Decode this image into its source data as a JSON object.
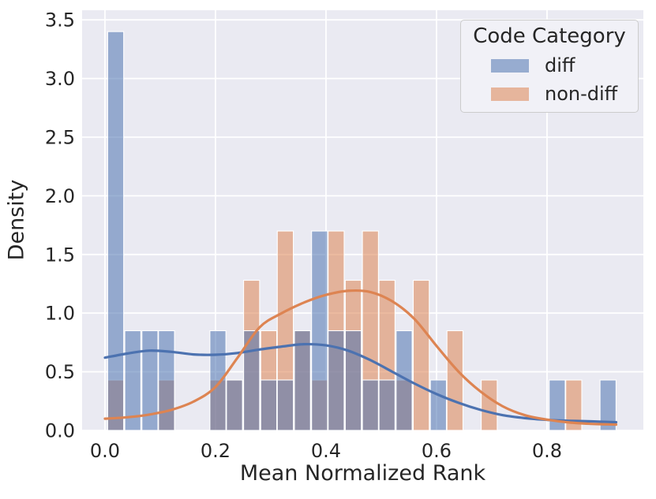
{
  "axes": {
    "xlabel": "Mean Normalized Rank",
    "ylabel": "Density",
    "background": "#eaeaf2",
    "grid_color": "#ffffff",
    "text_color": "#262626",
    "x_ticks": [
      {
        "value": 0.0,
        "label": "0.0"
      },
      {
        "value": 0.2,
        "label": "0.2"
      },
      {
        "value": 0.4,
        "label": "0.4"
      },
      {
        "value": 0.6,
        "label": "0.6"
      },
      {
        "value": 0.8,
        "label": "0.8"
      }
    ],
    "y_ticks": [
      {
        "value": 0.0,
        "label": "0.0"
      },
      {
        "value": 0.5,
        "label": "0.5"
      },
      {
        "value": 1.0,
        "label": "1.0"
      },
      {
        "value": 1.5,
        "label": "1.5"
      },
      {
        "value": 2.0,
        "label": "2.0"
      },
      {
        "value": 2.5,
        "label": "2.5"
      },
      {
        "value": 3.0,
        "label": "3.0"
      },
      {
        "value": 3.5,
        "label": "3.5"
      }
    ]
  },
  "legend": {
    "title": "Code Category",
    "items": [
      {
        "label": "diff",
        "color": "#4c72b0"
      },
      {
        "label": "non-diff",
        "color": "#dd8452"
      }
    ]
  },
  "chart_data": {
    "type": "bar",
    "subtype": "overlaid histogram (density) with KDE line overlay",
    "title": "",
    "xlabel": "Mean Normalized Rank",
    "ylabel": "Density",
    "xlim": [
      -0.0414,
      0.9743
    ],
    "ylim": [
      0,
      3.582
    ],
    "grid": "on",
    "legend_position": "upper right",
    "bar_alpha": 0.55,
    "bin_width": 0.0307,
    "series": [
      {
        "name": "diff",
        "color": "#4c72b0",
        "bars": [
          [
            0.004,
            3.4
          ],
          [
            0.035,
            0.85
          ],
          [
            0.066,
            0.85
          ],
          [
            0.096,
            0.85
          ],
          [
            0.189,
            0.85
          ],
          [
            0.219,
            0.43
          ],
          [
            0.25,
            0.85
          ],
          [
            0.281,
            0.43
          ],
          [
            0.311,
            0.43
          ],
          [
            0.342,
            0.85
          ],
          [
            0.373,
            1.7
          ],
          [
            0.403,
            0.85
          ],
          [
            0.434,
            0.85
          ],
          [
            0.465,
            0.43
          ],
          [
            0.495,
            0.43
          ],
          [
            0.526,
            0.85
          ],
          [
            0.588,
            0.43
          ],
          [
            0.803,
            0.43
          ],
          [
            0.895,
            0.43
          ]
        ]
      },
      {
        "name": "non-diff",
        "color": "#dd8452",
        "bars": [
          [
            0.004,
            0.43
          ],
          [
            0.096,
            0.43
          ],
          [
            0.189,
            0.43
          ],
          [
            0.219,
            0.43
          ],
          [
            0.25,
            1.28
          ],
          [
            0.281,
            0.85
          ],
          [
            0.311,
            1.7
          ],
          [
            0.342,
            0.85
          ],
          [
            0.373,
            0.43
          ],
          [
            0.403,
            1.7
          ],
          [
            0.434,
            1.28
          ],
          [
            0.465,
            1.7
          ],
          [
            0.495,
            1.28
          ],
          [
            0.526,
            0.43
          ],
          [
            0.557,
            1.28
          ],
          [
            0.618,
            0.85
          ],
          [
            0.68,
            0.43
          ],
          [
            0.833,
            0.43
          ]
        ]
      }
    ],
    "kde": [
      {
        "name": "diff",
        "color": "#4c72b0",
        "points": [
          [
            0.0,
            0.62
          ],
          [
            0.04,
            0.655
          ],
          [
            0.08,
            0.68
          ],
          [
            0.12,
            0.67
          ],
          [
            0.16,
            0.648
          ],
          [
            0.2,
            0.645
          ],
          [
            0.24,
            0.66
          ],
          [
            0.28,
            0.69
          ],
          [
            0.32,
            0.715
          ],
          [
            0.36,
            0.735
          ],
          [
            0.4,
            0.725
          ],
          [
            0.44,
            0.68
          ],
          [
            0.48,
            0.6
          ],
          [
            0.52,
            0.5
          ],
          [
            0.56,
            0.4
          ],
          [
            0.6,
            0.31
          ],
          [
            0.64,
            0.235
          ],
          [
            0.68,
            0.175
          ],
          [
            0.72,
            0.13
          ],
          [
            0.76,
            0.105
          ],
          [
            0.8,
            0.09
          ],
          [
            0.84,
            0.082
          ],
          [
            0.88,
            0.077
          ],
          [
            0.925,
            0.07
          ]
        ]
      },
      {
        "name": "non-diff",
        "color": "#dd8452",
        "points": [
          [
            0.0,
            0.1
          ],
          [
            0.04,
            0.112
          ],
          [
            0.08,
            0.135
          ],
          [
            0.12,
            0.175
          ],
          [
            0.16,
            0.245
          ],
          [
            0.2,
            0.37
          ],
          [
            0.24,
            0.62
          ],
          [
            0.28,
            0.88
          ],
          [
            0.32,
            1.0
          ],
          [
            0.36,
            1.09
          ],
          [
            0.4,
            1.155
          ],
          [
            0.44,
            1.19
          ],
          [
            0.48,
            1.18
          ],
          [
            0.52,
            1.1
          ],
          [
            0.56,
            0.95
          ],
          [
            0.6,
            0.72
          ],
          [
            0.64,
            0.5
          ],
          [
            0.68,
            0.33
          ],
          [
            0.72,
            0.205
          ],
          [
            0.76,
            0.13
          ],
          [
            0.8,
            0.092
          ],
          [
            0.84,
            0.068
          ],
          [
            0.88,
            0.056
          ],
          [
            0.925,
            0.05
          ]
        ]
      }
    ]
  }
}
